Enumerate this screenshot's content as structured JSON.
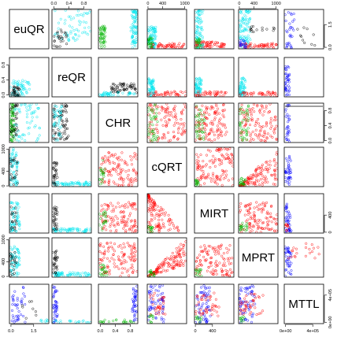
{
  "chart_data": {
    "type": "scatter",
    "variables": [
      "euQR",
      "reQR",
      "CHR",
      "cQRT",
      "MIRT",
      "MPRT",
      "MTTL"
    ],
    "colors": {
      "cyan_group": "#00e5ee",
      "black_group": "#000000",
      "green_group": "#00b300",
      "red_group": "#ff0000",
      "blue_group": "#0000ff"
    },
    "top_ticks": [
      {
        "column": 1,
        "labels": [
          {
            "v": 0.0,
            "t": "0.0"
          },
          {
            "v": 0.4,
            "t": "0.4"
          },
          {
            "v": 0.8,
            "t": "0.8"
          }
        ]
      },
      {
        "column": 3,
        "labels": [
          {
            "v": 0,
            "t": "0"
          },
          {
            "v": 400,
            "t": "400"
          },
          {
            "v": 1000,
            "t": "1000"
          }
        ]
      },
      {
        "column": 5,
        "labels": [
          {
            "v": 0,
            "t": "0"
          },
          {
            "v": 400,
            "t": "400"
          },
          {
            "v": 1000,
            "t": "1000"
          }
        ]
      }
    ],
    "bottom_ticks": [
      {
        "column": 0,
        "labels": [
          {
            "v": 0.0,
            "t": "0.0"
          },
          {
            "v": 1.5,
            "t": "1.5"
          }
        ]
      },
      {
        "column": 2,
        "labels": [
          {
            "v": 0.0,
            "t": "0.0"
          },
          {
            "v": 0.4,
            "t": "0.4"
          },
          {
            "v": 0.8,
            "t": "0.8"
          }
        ]
      },
      {
        "column": 4,
        "labels": [
          {
            "v": 0,
            "t": "0"
          },
          {
            "v": 400,
            "t": "400"
          }
        ]
      },
      {
        "column": 6,
        "labels": [
          {
            "v": 0,
            "t": "0e+00"
          },
          {
            "v": 400000,
            "t": "4e+05"
          }
        ]
      }
    ],
    "left_ticks": [
      {
        "row": 1,
        "labels": [
          {
            "v": 0.0,
            "t": "0.0"
          },
          {
            "v": 0.4,
            "t": "0.4"
          },
          {
            "v": 0.8,
            "t": "0.8"
          }
        ]
      },
      {
        "row": 3,
        "labels": [
          {
            "v": 0,
            "t": "0"
          },
          {
            "v": 400,
            "t": "400"
          },
          {
            "v": 1000,
            "t": "1000"
          }
        ]
      },
      {
        "row": 5,
        "labels": [
          {
            "v": 0,
            "t": "0"
          },
          {
            "v": 400,
            "t": "400"
          },
          {
            "v": 1000,
            "t": "1000"
          }
        ]
      }
    ],
    "right_ticks": [
      {
        "row": 0,
        "labels": [
          {
            "v": 0.0,
            "t": "0.0"
          },
          {
            "v": 1.5,
            "t": "1.5"
          }
        ]
      },
      {
        "row": 2,
        "labels": [
          {
            "v": 0.0,
            "t": "0.0"
          },
          {
            "v": 0.4,
            "t": "0.4"
          },
          {
            "v": 0.8,
            "t": "0.8"
          }
        ]
      },
      {
        "row": 4,
        "labels": [
          {
            "v": 0,
            "t": "0"
          },
          {
            "v": 400,
            "t": "400"
          }
        ]
      },
      {
        "row": 6,
        "labels": [
          {
            "v": 0,
            "t": "0e+00"
          },
          {
            "v": 400000,
            "t": "4e+05"
          }
        ]
      }
    ]
  }
}
